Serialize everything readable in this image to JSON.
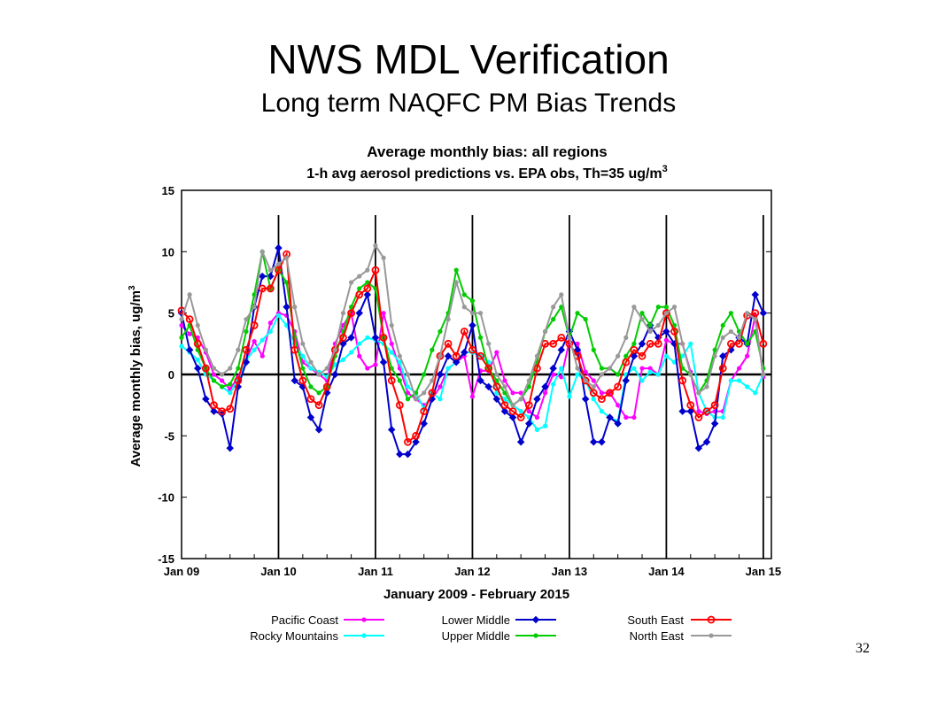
{
  "slide": {
    "title": "NWS MDL Verification",
    "subtitle": "Long term NAQFC PM Bias Trends",
    "page_number": "32"
  },
  "chart_data": {
    "type": "line",
    "title": "Average monthly bias: all regions",
    "subtitle_prefix": "1-h avg aerosol predictions vs. EPA obs, Th=35 ug/m",
    "subtitle_superscript": "3",
    "xlabel": "January 2009 - February 2015",
    "ylabel": "Average monthly bias, ug/m",
    "ylabel_superscript": "3",
    "ylim": [
      -15,
      15
    ],
    "yticks": [
      15,
      10,
      5,
      0,
      -5,
      -10,
      -15
    ],
    "xlim": [
      0,
      73
    ],
    "x_tick_labels": [
      "Jan 09",
      "Jan 10",
      "Jan 11",
      "Jan 12",
      "Jan 13",
      "Jan 14",
      "Jan 15"
    ],
    "x_tick_positions": [
      0,
      12,
      24,
      36,
      48,
      60,
      72
    ],
    "x_start": "2009-01",
    "year_divider_positions": [
      12,
      24,
      36,
      48,
      60,
      72
    ],
    "zero_line": true,
    "grid": false,
    "legend_position": "bottom",
    "series": [
      {
        "name": "Pacific Coast",
        "color": "#ff00ff",
        "values": [
          4.0,
          3.3,
          3.0,
          1.8,
          0.0,
          -0.5,
          -1.2,
          -0.2,
          1.2,
          2.7,
          1.5,
          4.2,
          5.0,
          4.8,
          3.5,
          1.0,
          0.5,
          0.0,
          -0.5,
          2.5,
          4.0,
          5.0,
          1.5,
          0.5,
          0.8,
          5.0,
          2.5,
          0.5,
          -1.5,
          -2.0,
          -2.5,
          -2.0,
          -1.0,
          0.5,
          1.0,
          1.5,
          -1.8,
          0.3,
          0.3,
          1.8,
          -0.5,
          -1.5,
          -1.5,
          -3.0,
          -3.5,
          -1.5,
          0.0,
          -0.2,
          2.7,
          2.5,
          0.2,
          -0.5,
          -1.5,
          -1.5,
          -2.5,
          -3.5,
          -3.5,
          0.5,
          0.5,
          0.0,
          2.8,
          2.5,
          2.5,
          0.2,
          -3.0,
          -3.2,
          -3.0,
          -3.0,
          -0.5,
          0.5,
          1.5,
          4.8,
          -0.2
        ]
      },
      {
        "name": "Rocky Mountains",
        "color": "#00ffff",
        "values": [
          2.3,
          1.8,
          1.2,
          0.0,
          -0.5,
          -1.0,
          -1.5,
          -0.5,
          1.2,
          2.0,
          2.8,
          3.5,
          4.8,
          4.0,
          2.5,
          1.5,
          0.5,
          0.2,
          -0.2,
          0.8,
          1.2,
          1.8,
          2.5,
          3.0,
          2.8,
          2.5,
          1.8,
          1.0,
          -1.0,
          -1.5,
          -2.8,
          -1.5,
          -2.0,
          0.5,
          1.0,
          1.8,
          1.8,
          1.5,
          1.0,
          -1.5,
          -2.0,
          -2.5,
          -3.0,
          -3.5,
          -4.5,
          -4.2,
          -0.8,
          0.5,
          -1.8,
          0.0,
          -0.5,
          -2.0,
          -3.0,
          -3.5,
          -3.8,
          0.0,
          0.5,
          -0.5,
          0.2,
          0.0,
          1.5,
          1.0,
          1.5,
          2.5,
          -1.5,
          -3.0,
          -3.5,
          -3.5,
          -0.5,
          -0.5,
          -1.0,
          -1.5,
          0.0
        ]
      },
      {
        "name": "Lower Middle",
        "color": "#0000cc",
        "values": [
          5.0,
          2.0,
          0.5,
          -2.0,
          -3.0,
          -3.2,
          -6.0,
          -1.0,
          1.0,
          5.5,
          8.0,
          8.0,
          10.3,
          5.5,
          -0.5,
          -1.0,
          -3.5,
          -4.5,
          -1.5,
          0.0,
          2.5,
          3.0,
          5.0,
          6.5,
          3.0,
          1.0,
          -4.5,
          -6.5,
          -6.5,
          -5.5,
          -4.0,
          -2.0,
          0.0,
          1.5,
          1.0,
          1.8,
          4.0,
          -0.5,
          -1.0,
          -2.0,
          -3.0,
          -3.5,
          -5.5,
          -4.0,
          -2.0,
          -1.0,
          0.5,
          2.0,
          3.5,
          2.0,
          -2.0,
          -5.5,
          -5.5,
          -3.5,
          -4.0,
          -0.5,
          1.5,
          2.5,
          4.0,
          3.0,
          3.5,
          2.5,
          -3.0,
          -3.0,
          -6.0,
          -5.5,
          -4.0,
          1.5,
          2.0,
          3.0,
          2.5,
          6.5,
          5.0
        ]
      },
      {
        "name": "Upper Middle",
        "color": "#00cc00",
        "values": [
          3.0,
          4.0,
          2.0,
          0.5,
          -0.5,
          -1.0,
          -0.8,
          0.5,
          3.5,
          6.5,
          10.0,
          7.0,
          8.5,
          7.5,
          3.0,
          0.5,
          -1.0,
          -1.5,
          -1.0,
          1.5,
          3.5,
          5.5,
          7.0,
          7.5,
          7.0,
          3.0,
          0.5,
          -0.5,
          -2.0,
          -1.5,
          0.0,
          2.0,
          3.5,
          5.0,
          8.5,
          6.5,
          6.0,
          3.0,
          0.5,
          -0.5,
          -1.5,
          -2.5,
          -2.0,
          -1.0,
          1.0,
          3.5,
          4.5,
          5.5,
          3.0,
          5.0,
          4.5,
          2.0,
          0.5,
          0.5,
          0.0,
          1.5,
          2.5,
          5.0,
          4.0,
          5.5,
          5.5,
          4.0,
          0.5,
          0.0,
          -1.5,
          -0.5,
          2.0,
          4.0,
          5.0,
          3.5,
          2.5,
          3.5,
          0.5
        ]
      },
      {
        "name": "South East",
        "color": "#ff0000",
        "values": [
          5.2,
          4.5,
          2.5,
          0.5,
          -2.5,
          -3.0,
          -2.8,
          -0.5,
          2.0,
          4.0,
          7.0,
          7.0,
          8.5,
          9.8,
          2.0,
          -0.5,
          -2.0,
          -2.5,
          -1.0,
          2.0,
          3.0,
          5.0,
          6.5,
          7.0,
          8.5,
          3.0,
          -0.5,
          -2.5,
          -5.5,
          -5.0,
          -3.0,
          -1.5,
          1.5,
          2.5,
          1.5,
          3.5,
          2.0,
          1.5,
          0.5,
          -1.0,
          -2.5,
          -3.0,
          -3.5,
          -2.5,
          0.5,
          2.5,
          2.5,
          3.0,
          2.5,
          1.5,
          -0.5,
          -1.5,
          -2.0,
          -1.5,
          -1.0,
          1.0,
          2.0,
          1.5,
          2.5,
          2.5,
          5.0,
          3.5,
          -0.5,
          -2.5,
          -3.5,
          -3.0,
          -2.5,
          0.5,
          2.5,
          2.5,
          4.8,
          5.0,
          2.5
        ]
      },
      {
        "name": "North East",
        "color": "#999999",
        "values": [
          4.5,
          6.5,
          4.0,
          2.0,
          0.5,
          0.0,
          0.5,
          2.0,
          4.5,
          5.5,
          10.0,
          8.5,
          9.0,
          9.5,
          5.5,
          2.5,
          1.0,
          0.0,
          0.5,
          2.0,
          5.0,
          7.5,
          8.0,
          8.5,
          10.5,
          9.5,
          4.0,
          1.5,
          0.0,
          -2.0,
          -1.5,
          -0.5,
          1.5,
          4.5,
          7.5,
          5.5,
          5.0,
          5.0,
          2.5,
          0.0,
          -1.0,
          -2.5,
          -2.0,
          -0.5,
          1.5,
          3.5,
          5.5,
          6.5,
          3.0,
          0.5,
          -0.5,
          -1.0,
          0.0,
          0.5,
          1.5,
          3.0,
          5.5,
          4.5,
          3.5,
          4.0,
          5.0,
          5.5,
          2.5,
          0.0,
          -1.5,
          -1.0,
          1.5,
          3.0,
          3.5,
          3.0,
          5.0,
          4.5,
          0.0
        ]
      }
    ]
  }
}
